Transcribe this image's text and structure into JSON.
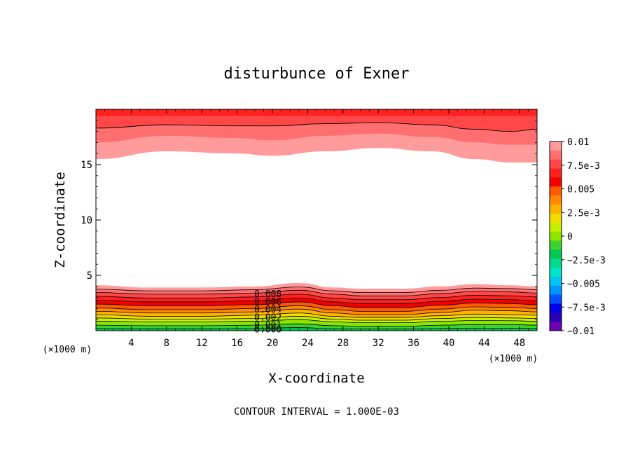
{
  "chart_data": {
    "type": "heatmap",
    "title": "disturbunce of Exner",
    "xlabel": "X-coordinate",
    "ylabel": "Z-coordinate",
    "x_unit_label": "(×1000 m)",
    "z_unit_label": "(×1000 m)",
    "xlim": [
      0,
      50
    ],
    "zlim": [
      0,
      20
    ],
    "x_ticks": [
      "4",
      "8",
      "12",
      "16",
      "20",
      "24",
      "28",
      "32",
      "36",
      "40",
      "44",
      "48"
    ],
    "z_ticks": [
      "5",
      "10",
      "15"
    ],
    "footer": "CONTOUR INTERVAL = 1.000E-03",
    "colorbar": {
      "range": [
        -0.01,
        0.01
      ],
      "labels": [
        "0.01",
        "7.5e-3",
        "0.005",
        "2.5e-3",
        "0",
        "-2.5e-3",
        "-0.005",
        "-7.5e-3",
        "-0.01"
      ],
      "colors": [
        "#ff9b9b",
        "#ff6f6f",
        "#ff4747",
        "#ff2020",
        "#f40000",
        "#ff5a00",
        "#ff8a00",
        "#ffb300",
        "#f2dc00",
        "#c8f000",
        "#8ce600",
        "#3cd22d",
        "#00c850",
        "#00dc8c",
        "#00e6c8",
        "#00c8f0",
        "#0096ff",
        "#0050ff",
        "#0000e6",
        "#2a00b4",
        "#6e00b4"
      ]
    },
    "contour_labels": [
      "0.008",
      "0.006",
      "0.004",
      "0.002",
      "0.001",
      "0.000"
    ],
    "lower_layers": [
      {
        "level": 0.0095,
        "color": "#ff9b9b",
        "top": [
          [
            0,
            4.1
          ],
          [
            6,
            3.9
          ],
          [
            12,
            3.9
          ],
          [
            18,
            4.0
          ],
          [
            23,
            4.3
          ],
          [
            27,
            3.9
          ],
          [
            30,
            3.8
          ],
          [
            35,
            3.8
          ],
          [
            39,
            4.0
          ],
          [
            43,
            4.2
          ],
          [
            47,
            4.1
          ],
          [
            50,
            4.0
          ]
        ]
      },
      {
        "level": 0.009,
        "color": "#ff6f6f",
        "top": [
          [
            0,
            3.75
          ],
          [
            6,
            3.6
          ],
          [
            12,
            3.6
          ],
          [
            18,
            3.7
          ],
          [
            23,
            3.95
          ],
          [
            27,
            3.6
          ],
          [
            30,
            3.45
          ],
          [
            35,
            3.45
          ],
          [
            39,
            3.65
          ],
          [
            43,
            3.85
          ],
          [
            47,
            3.8
          ],
          [
            50,
            3.7
          ]
        ]
      },
      {
        "level": 0.008,
        "color": "#ff4747",
        "top": [
          [
            0,
            3.45
          ],
          [
            6,
            3.3
          ],
          [
            12,
            3.3
          ],
          [
            18,
            3.4
          ],
          [
            23,
            3.65
          ],
          [
            27,
            3.3
          ],
          [
            30,
            3.15
          ],
          [
            35,
            3.15
          ],
          [
            39,
            3.35
          ],
          [
            43,
            3.55
          ],
          [
            47,
            3.5
          ],
          [
            50,
            3.4
          ]
        ]
      },
      {
        "level": 0.007,
        "color": "#ff2020",
        "top": [
          [
            0,
            3.1
          ],
          [
            6,
            2.95
          ],
          [
            12,
            2.95
          ],
          [
            18,
            3.05
          ],
          [
            23,
            3.3
          ],
          [
            27,
            2.95
          ],
          [
            30,
            2.8
          ],
          [
            35,
            2.8
          ],
          [
            39,
            3.0
          ],
          [
            43,
            3.2
          ],
          [
            47,
            3.15
          ],
          [
            50,
            3.05
          ]
        ]
      },
      {
        "level": 0.006,
        "color": "#f40000",
        "top": [
          [
            0,
            2.75
          ],
          [
            6,
            2.6
          ],
          [
            12,
            2.6
          ],
          [
            18,
            2.7
          ],
          [
            23,
            2.95
          ],
          [
            27,
            2.6
          ],
          [
            30,
            2.45
          ],
          [
            35,
            2.45
          ],
          [
            39,
            2.65
          ],
          [
            43,
            2.85
          ],
          [
            47,
            2.8
          ],
          [
            50,
            2.7
          ]
        ]
      },
      {
        "level": 0.005,
        "color": "#ff5a00",
        "top": [
          [
            0,
            2.4
          ],
          [
            6,
            2.25
          ],
          [
            12,
            2.25
          ],
          [
            18,
            2.35
          ],
          [
            23,
            2.6
          ],
          [
            27,
            2.25
          ],
          [
            30,
            2.1
          ],
          [
            35,
            2.1
          ],
          [
            39,
            2.3
          ],
          [
            43,
            2.5
          ],
          [
            47,
            2.45
          ],
          [
            50,
            2.35
          ]
        ]
      },
      {
        "level": 0.004,
        "color": "#ff8a00",
        "top": [
          [
            0,
            2.05
          ],
          [
            6,
            1.9
          ],
          [
            12,
            1.9
          ],
          [
            18,
            2.0
          ],
          [
            23,
            2.25
          ],
          [
            27,
            1.9
          ],
          [
            30,
            1.75
          ],
          [
            35,
            1.75
          ],
          [
            39,
            1.95
          ],
          [
            43,
            2.15
          ],
          [
            47,
            2.1
          ],
          [
            50,
            2.0
          ]
        ]
      },
      {
        "level": 0.0035,
        "color": "#ffb300",
        "top": [
          [
            0,
            1.75
          ],
          [
            6,
            1.6
          ],
          [
            12,
            1.6
          ],
          [
            18,
            1.7
          ],
          [
            23,
            1.95
          ],
          [
            27,
            1.6
          ],
          [
            30,
            1.45
          ],
          [
            35,
            1.45
          ],
          [
            39,
            1.65
          ],
          [
            43,
            1.85
          ],
          [
            47,
            1.8
          ],
          [
            50,
            1.7
          ]
        ]
      },
      {
        "level": 0.003,
        "color": "#f2dc00",
        "top": [
          [
            0,
            1.45
          ],
          [
            6,
            1.3
          ],
          [
            12,
            1.3
          ],
          [
            18,
            1.4
          ],
          [
            23,
            1.6
          ],
          [
            27,
            1.3
          ],
          [
            30,
            1.2
          ],
          [
            35,
            1.2
          ],
          [
            39,
            1.35
          ],
          [
            43,
            1.5
          ],
          [
            47,
            1.45
          ],
          [
            50,
            1.4
          ]
        ]
      },
      {
        "level": 0.0025,
        "color": "#c8f000",
        "top": [
          [
            0,
            1.15
          ],
          [
            6,
            1.05
          ],
          [
            12,
            1.05
          ],
          [
            18,
            1.1
          ],
          [
            23,
            1.3
          ],
          [
            27,
            1.05
          ],
          [
            30,
            0.95
          ],
          [
            35,
            0.95
          ],
          [
            39,
            1.1
          ],
          [
            43,
            1.2
          ],
          [
            47,
            1.15
          ],
          [
            50,
            1.1
          ]
        ]
      },
      {
        "level": 0.002,
        "color": "#8ce600",
        "top": [
          [
            0,
            0.85
          ],
          [
            6,
            0.8
          ],
          [
            12,
            0.8
          ],
          [
            18,
            0.85
          ],
          [
            23,
            1.0
          ],
          [
            27,
            0.8
          ],
          [
            30,
            0.72
          ],
          [
            35,
            0.72
          ],
          [
            39,
            0.85
          ],
          [
            43,
            0.92
          ],
          [
            47,
            0.9
          ],
          [
            50,
            0.85
          ]
        ]
      },
      {
        "level": 0.0015,
        "color": "#3cd22d",
        "top": [
          [
            0,
            0.5
          ],
          [
            6,
            0.45
          ],
          [
            12,
            0.45
          ],
          [
            18,
            0.5
          ],
          [
            23,
            0.62
          ],
          [
            27,
            0.45
          ],
          [
            30,
            0.4
          ],
          [
            35,
            0.4
          ],
          [
            39,
            0.5
          ],
          [
            43,
            0.55
          ],
          [
            47,
            0.55
          ],
          [
            50,
            0.5
          ]
        ]
      },
      {
        "level": 0.001,
        "color": "#00c850",
        "top": [
          [
            0,
            0.2
          ],
          [
            6,
            0.18
          ],
          [
            12,
            0.18
          ],
          [
            18,
            0.2
          ],
          [
            23,
            0.28
          ],
          [
            27,
            0.18
          ],
          [
            30,
            0.15
          ],
          [
            35,
            0.15
          ],
          [
            39,
            0.2
          ],
          [
            43,
            0.22
          ],
          [
            47,
            0.22
          ],
          [
            50,
            0.2
          ]
        ]
      }
    ],
    "upper_layers": [
      {
        "level": 0.008,
        "color": "#ff9b9b",
        "bottom": [
          [
            0,
            15.5
          ],
          [
            8,
            16.2
          ],
          [
            16,
            16.0
          ],
          [
            20,
            15.8
          ],
          [
            26,
            16.2
          ],
          [
            32,
            16.5
          ],
          [
            38,
            16.2
          ],
          [
            43,
            15.5
          ],
          [
            47,
            15.2
          ],
          [
            50,
            15.2
          ]
        ]
      },
      {
        "level": 0.009,
        "color": "#ff6f6f",
        "bottom": [
          [
            0,
            17.0
          ],
          [
            8,
            17.6
          ],
          [
            16,
            17.4
          ],
          [
            20,
            17.2
          ],
          [
            26,
            17.6
          ],
          [
            32,
            17.8
          ],
          [
            38,
            17.5
          ],
          [
            43,
            17.0
          ],
          [
            47,
            16.8
          ],
          [
            50,
            16.8
          ]
        ]
      },
      {
        "level": 0.0095,
        "color": "#ff4747",
        "bottom": [
          [
            0,
            18.3
          ],
          [
            8,
            18.6
          ],
          [
            16,
            18.5
          ],
          [
            20,
            18.5
          ],
          [
            26,
            18.7
          ],
          [
            32,
            18.8
          ],
          [
            38,
            18.6
          ],
          [
            43,
            18.2
          ],
          [
            47,
            18.0
          ],
          [
            50,
            18.2
          ]
        ]
      },
      {
        "level": 0.01,
        "color": "#ff2020",
        "bottom": [
          [
            0,
            19.4
          ],
          [
            10,
            19.4
          ],
          [
            20,
            19.4
          ],
          [
            30,
            19.4
          ],
          [
            40,
            19.4
          ],
          [
            50,
            19.4
          ]
        ]
      }
    ],
    "upper_contour": [
      [
        0,
        18.3
      ],
      [
        8,
        18.6
      ],
      [
        16,
        18.5
      ],
      [
        20,
        18.5
      ],
      [
        26,
        18.7
      ],
      [
        32,
        18.8
      ],
      [
        38,
        18.6
      ],
      [
        43,
        18.2
      ],
      [
        47,
        18.0
      ],
      [
        50,
        18.2
      ]
    ]
  }
}
